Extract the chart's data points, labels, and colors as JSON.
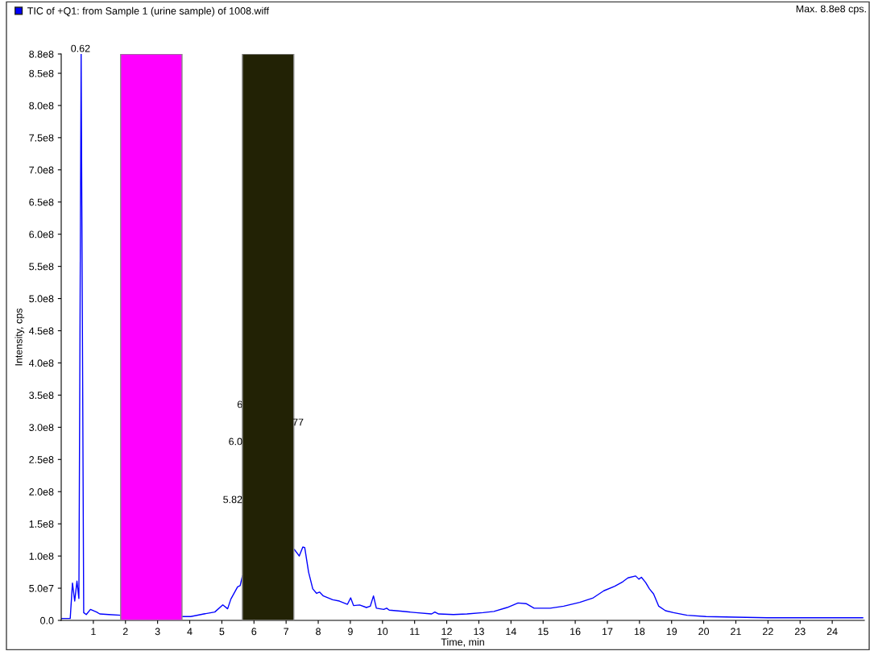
{
  "chart_data": {
    "type": "line",
    "xlabel": "Time, min",
    "ylabel": "Intensity, cps",
    "xlim": [
      0,
      25
    ],
    "ylim": [
      0,
      880000000
    ],
    "xticks": [
      1,
      2,
      3,
      4,
      5,
      6,
      7,
      8,
      9,
      10,
      11,
      12,
      13,
      14,
      15,
      16,
      17,
      18,
      19,
      20,
      21,
      22,
      23,
      24
    ],
    "yticks": [
      {
        "value": 0,
        "label": "0.0"
      },
      {
        "value": 50000000,
        "label": "5.0e7"
      },
      {
        "value": 100000000,
        "label": "1.0e8"
      },
      {
        "value": 150000000,
        "label": "1.5e8"
      },
      {
        "value": 200000000,
        "label": "2.0e8"
      },
      {
        "value": 250000000,
        "label": "2.5e8"
      },
      {
        "value": 300000000,
        "label": "3.0e8"
      },
      {
        "value": 350000000,
        "label": "3.5e8"
      },
      {
        "value": 400000000,
        "label": "4.0e8"
      },
      {
        "value": 450000000,
        "label": "4.5e8"
      },
      {
        "value": 500000000,
        "label": "5.0e8"
      },
      {
        "value": 550000000,
        "label": "5.5e8"
      },
      {
        "value": 600000000,
        "label": "6.0e8"
      },
      {
        "value": 650000000,
        "label": "6.5e8"
      },
      {
        "value": 700000000,
        "label": "7.0e8"
      },
      {
        "value": 750000000,
        "label": "7.5e8"
      },
      {
        "value": 800000000,
        "label": "8.0e8"
      },
      {
        "value": 850000000,
        "label": "8.5e8"
      },
      {
        "value": 880000000,
        "label": "8.8e8"
      }
    ],
    "grid": false,
    "legend": "top left",
    "series": [
      {
        "name": "TIC of +Q1: from Sample 1 (urine sample) of 1008.wiff",
        "color": "#0000ff",
        "x": [
          0,
          0.28,
          0.35,
          0.42,
          0.49,
          0.55,
          0.62,
          0.7,
          0.78,
          0.91,
          1.1,
          1.2,
          1.48,
          1.85,
          2.8,
          3.78,
          4.03,
          4.44,
          4.78,
          5.03,
          5.18,
          5.28,
          5.49,
          5.57,
          5.64,
          6.4,
          7.26,
          7.41,
          7.52,
          7.58,
          7.7,
          7.83,
          7.95,
          8.04,
          8.16,
          8.45,
          8.66,
          8.91,
          9.01,
          9.1,
          9.29,
          9.5,
          9.62,
          9.72,
          9.81,
          10.04,
          10.13,
          10.21,
          10.63,
          11.04,
          11.53,
          11.63,
          11.75,
          12.21,
          12.63,
          13.13,
          13.47,
          13.88,
          14.22,
          14.47,
          14.72,
          15.22,
          15.64,
          16.14,
          16.56,
          16.89,
          17.23,
          17.48,
          17.64,
          17.88,
          17.98,
          18.06,
          18.19,
          18.31,
          18.44,
          18.6,
          18.81,
          19.06,
          19.48,
          20.07,
          20.99,
          21.99,
          23.49,
          24.95
        ],
        "values": [
          3000000,
          3000000,
          58000000,
          30000000,
          61000000,
          34000000,
          880000000,
          12000000,
          9000000,
          17000000,
          13000000,
          10000000,
          9000000,
          8000000,
          null,
          6000000,
          6000000,
          10000000,
          13000000,
          24000000,
          18000000,
          33000000,
          52000000,
          54000000,
          69000000,
          null,
          110000000,
          100000000,
          114000000,
          113000000,
          75000000,
          49000000,
          42000000,
          44000000,
          38000000,
          32000000,
          30000000,
          25000000,
          35000000,
          23000000,
          24000000,
          20000000,
          22000000,
          38000000,
          19000000,
          17000000,
          19000000,
          16000000,
          14000000,
          12000000,
          10000000,
          13000000,
          10000000,
          9000000,
          10000000,
          12000000,
          14000000,
          20000000,
          27000000,
          26000000,
          19000000,
          19000000,
          22000000,
          28000000,
          35000000,
          46000000,
          53000000,
          60000000,
          66000000,
          69000000,
          64000000,
          67000000,
          59000000,
          49000000,
          41000000,
          22000000,
          15000000,
          12000000,
          8000000,
          6000000,
          5000000,
          4000000,
          4000000,
          4000000
        ]
      }
    ],
    "bands": [
      {
        "axis": "x",
        "from": 1.85,
        "to": 3.76,
        "color": "#ff00ff"
      },
      {
        "axis": "x",
        "from": 5.64,
        "to": 7.24,
        "color": "#222205"
      }
    ],
    "annotations": [
      "Max. 8.8e8 cps.",
      {
        "text": "0.62",
        "x": 0.6,
        "y": 880000000
      },
      {
        "text": "6",
        "x": 5.56,
        "y": 327000000
      },
      "77",
      "6.0",
      "5.82"
    ]
  }
}
